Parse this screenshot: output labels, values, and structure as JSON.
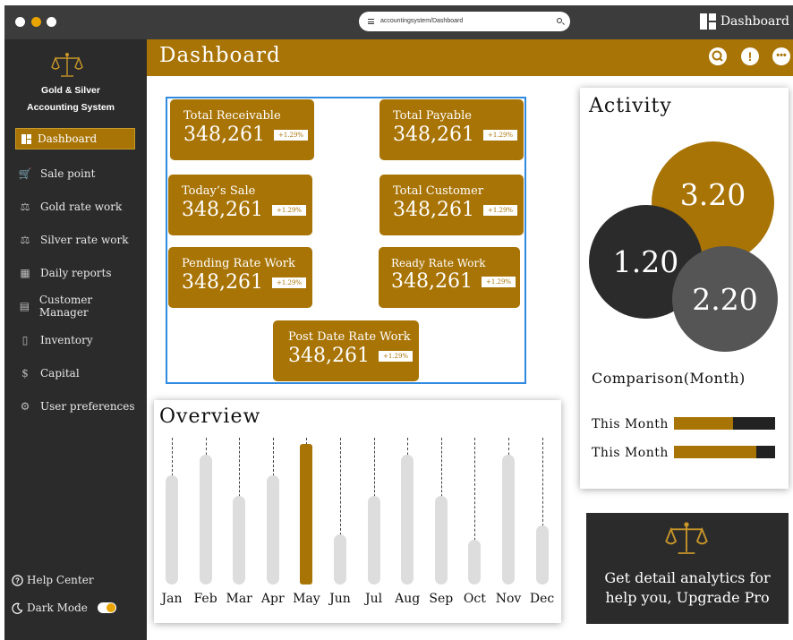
{
  "browser": {
    "url": "accountingsystem/Dashboard",
    "right_label": "Dashboard",
    "dot_colors": [
      "#ffffff",
      "#e8a400",
      "#ffffff"
    ]
  },
  "sidebar": {
    "brand_line1": "Gold & Silver",
    "brand_line2": "Accounting System",
    "items": [
      {
        "label": "Dashboard",
        "icon": "grid-icon"
      },
      {
        "label": "Sale point",
        "icon": "cart-icon"
      },
      {
        "label": "Gold rate work",
        "icon": "scale-icon"
      },
      {
        "label": "Silver rate work",
        "icon": "scale-icon"
      },
      {
        "label": "Daily reports",
        "icon": "calendar-icon"
      },
      {
        "label": "Customer Manager",
        "icon": "user-document-icon"
      },
      {
        "label": "Inventory",
        "icon": "document-icon"
      },
      {
        "label": "Capital",
        "icon": "money-icon"
      },
      {
        "label": "User preferences",
        "icon": "gear-icon"
      }
    ],
    "help": "Help Center",
    "dark_mode": "Dark Mode"
  },
  "header": {
    "title": "Dashboard"
  },
  "stats": [
    {
      "label": "Total Receivable",
      "value": "348,261",
      "change": "+1.29%"
    },
    {
      "label": "Total Payable",
      "value": "348,261",
      "change": "+1.29%"
    },
    {
      "label": "Today’s Sale",
      "value": "348,261",
      "change": "+1.29%"
    },
    {
      "label": "Total Customer",
      "value": "348,261",
      "change": "+1.29%"
    },
    {
      "label": "Pending Rate Work",
      "value": "348,261",
      "change": "+1.29%"
    },
    {
      "label": "Ready Rate Work",
      "value": "348,261",
      "change": "+1.29%"
    },
    {
      "label": "Post Date Rate Work",
      "value": "348,261",
      "change": "+1.29%"
    }
  ],
  "overview": {
    "title": "Overview",
    "months": [
      "Jan",
      "Feb",
      "Mar",
      "Apr",
      "May",
      "Jun",
      "Jul",
      "Aug",
      "Sep",
      "Oct",
      "Nov",
      "Dec"
    ],
    "values": [
      0.74,
      0.88,
      0.6,
      0.74,
      0.95,
      0.34,
      0.6,
      0.88,
      0.6,
      0.3,
      0.88,
      0.4
    ],
    "highlight_index": 4
  },
  "activity": {
    "title": "Activity",
    "circles": [
      "3.20",
      "1.20",
      "2.20"
    ],
    "comparison_title": "Comparison(Month)",
    "rows": [
      {
        "label": "This Month",
        "fill": 0.58
      },
      {
        "label": "This Month",
        "fill": 0.81
      }
    ]
  },
  "upgrade": {
    "line1": "Get detail analytics for",
    "line2": "help you, Upgrade Pro"
  },
  "colors": {
    "accent": "#a87406",
    "sidebar": "#2b2b2b",
    "selection": "#2f8ae0"
  }
}
